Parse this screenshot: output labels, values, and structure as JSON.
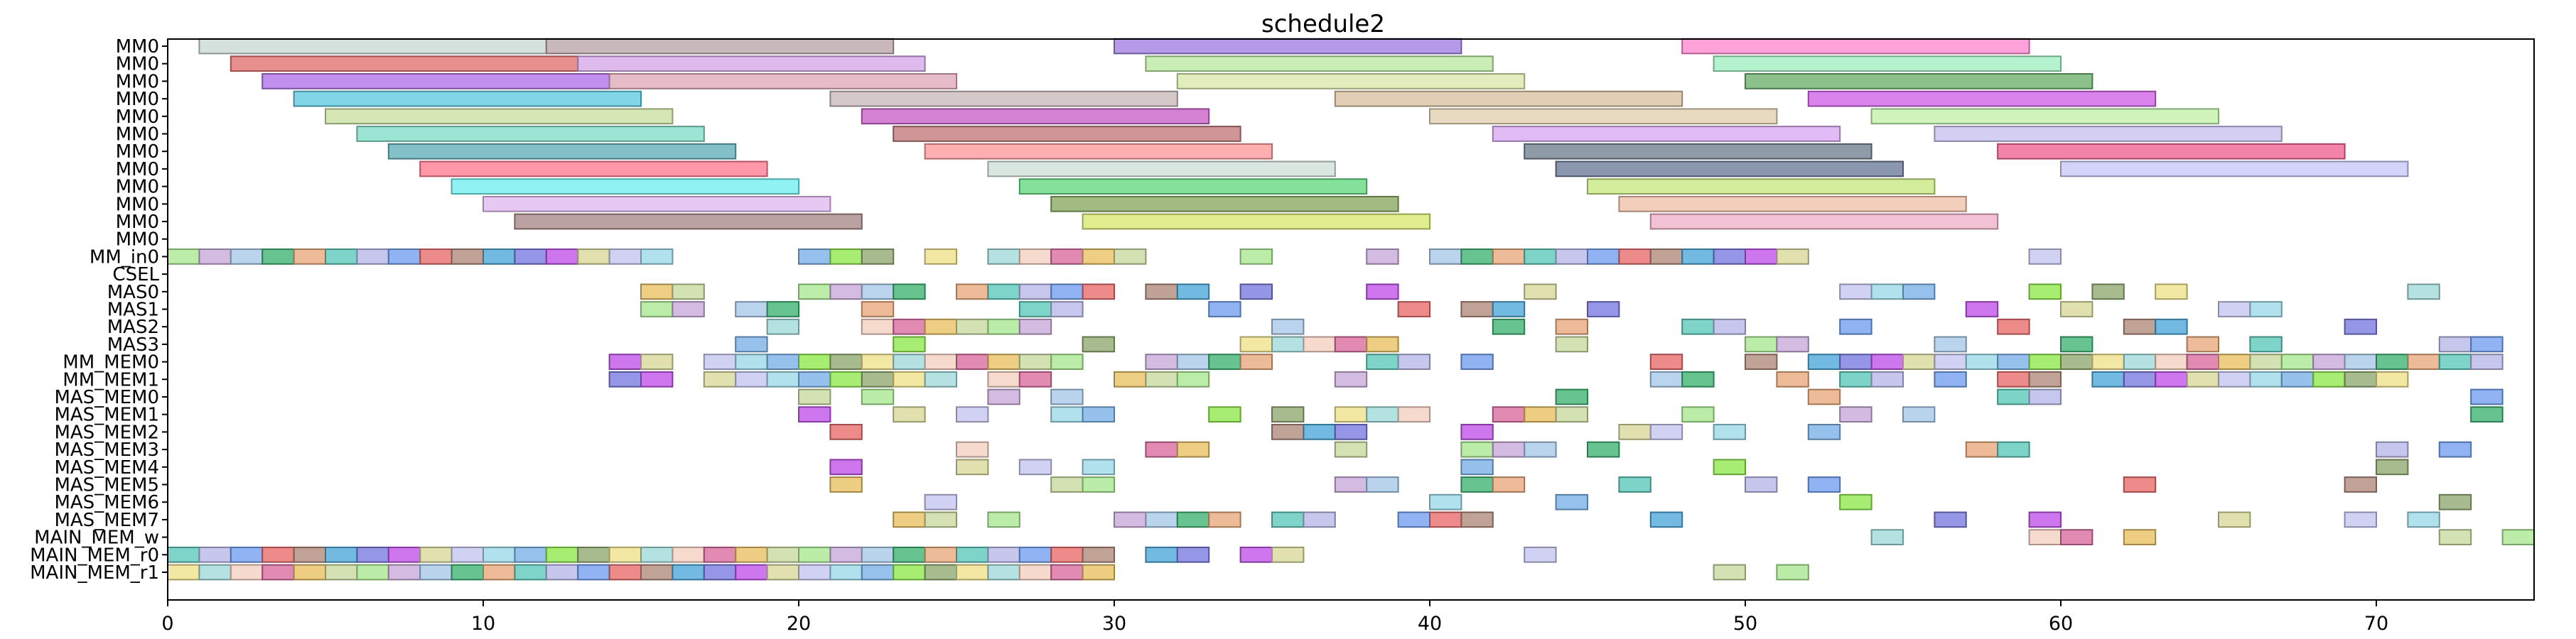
{
  "chart_data": {
    "type": "gantt",
    "title": "schedule2",
    "xlim": [
      0,
      75
    ],
    "xticks": [
      0,
      10,
      20,
      30,
      40,
      50,
      60,
      70
    ],
    "rows": [
      "MM0",
      "MM0",
      "MM0",
      "MM0",
      "MM0",
      "MM0",
      "MM0",
      "MM0",
      "MM0",
      "MM0",
      "MM0",
      "MM0",
      "MM_in0",
      "CSEL",
      "MAS0",
      "MAS1",
      "MAS2",
      "MAS3",
      "MM_MEM0",
      "MM_MEM1",
      "MAS_MEM0",
      "MAS_MEM1",
      "MAS_MEM2",
      "MAS_MEM3",
      "MAS_MEM4",
      "MAS_MEM5",
      "MAS_MEM6",
      "MAS_MEM7",
      "MAIN_MEM_w",
      "MAIN_MEM_r0",
      "MAIN_MEM_r1"
    ],
    "palette": [
      "#a6c8e8",
      "#9fd8d8",
      "#d8d89a",
      "#b7b7e8",
      "#c7d89e",
      "#8de84a",
      "#4aa6d8",
      "#3cb371",
      "#f5d0c0",
      "#c4c4f0",
      "#6f9ef0",
      "#a8e890",
      "#8fa86f",
      "#7878e0",
      "#e8a87a",
      "#d86a9e",
      "#9ad8e8",
      "#e86a6a",
      "#c8a8d8",
      "#f0e08a",
      "#c050e8",
      "#5ac8b8",
      "#e8c060",
      "#7ab0e8",
      "#b08878"
    ],
    "series": [
      {
        "row": 0,
        "start": 1,
        "end": 12,
        "color": "#c9d8d2"
      },
      {
        "row": 0,
        "start": 12,
        "end": 23,
        "color": "#b8a3a8"
      },
      {
        "row": 0,
        "start": 30,
        "end": 41,
        "color": "#a07ee0"
      },
      {
        "row": 0,
        "start": 48,
        "end": 59,
        "color": "#ff88d0"
      },
      {
        "row": 1,
        "start": 2,
        "end": 13,
        "color": "#e07070"
      },
      {
        "row": 1,
        "start": 13,
        "end": 24,
        "color": "#d4a8e8"
      },
      {
        "row": 1,
        "start": 31,
        "end": 42,
        "color": "#b8e8a0"
      },
      {
        "row": 1,
        "start": 49,
        "end": 60,
        "color": "#a0f0c0"
      },
      {
        "row": 2,
        "start": 3,
        "end": 14,
        "color": "#b070e8"
      },
      {
        "row": 2,
        "start": 14,
        "end": 25,
        "color": "#e0a8b8"
      },
      {
        "row": 2,
        "start": 32,
        "end": 43,
        "color": "#d8e8a8"
      },
      {
        "row": 2,
        "start": 50,
        "end": 61,
        "color": "#6aaf6a"
      },
      {
        "row": 3,
        "start": 4,
        "end": 15,
        "color": "#5ccbe0"
      },
      {
        "row": 3,
        "start": 21,
        "end": 32,
        "color": "#c8b8b8"
      },
      {
        "row": 3,
        "start": 37,
        "end": 48,
        "color": "#d8c0a0"
      },
      {
        "row": 3,
        "start": 52,
        "end": 63,
        "color": "#d060e8"
      },
      {
        "row": 4,
        "start": 5,
        "end": 16,
        "color": "#c8e0a0"
      },
      {
        "row": 4,
        "start": 22,
        "end": 33,
        "color": "#c860c8"
      },
      {
        "row": 4,
        "start": 40,
        "end": 51,
        "color": "#e0d0b0"
      },
      {
        "row": 4,
        "start": 54,
        "end": 65,
        "color": "#c0f0a8"
      },
      {
        "row": 5,
        "start": 6,
        "end": 17,
        "color": "#80dcc8"
      },
      {
        "row": 5,
        "start": 23,
        "end": 34,
        "color": "#c07878"
      },
      {
        "row": 5,
        "start": 42,
        "end": 53,
        "color": "#d8a8f0"
      },
      {
        "row": 5,
        "start": 56,
        "end": 67,
        "color": "#c8c0f0"
      },
      {
        "row": 6,
        "start": 7,
        "end": 18,
        "color": "#60b0b8"
      },
      {
        "row": 6,
        "start": 24,
        "end": 35,
        "color": "#ff9898"
      },
      {
        "row": 6,
        "start": 43,
        "end": 54,
        "color": "#708090"
      },
      {
        "row": 6,
        "start": 58,
        "end": 69,
        "color": "#f06090"
      },
      {
        "row": 7,
        "start": 8,
        "end": 19,
        "color": "#ff7a90"
      },
      {
        "row": 7,
        "start": 26,
        "end": 37,
        "color": "#d0e0d8"
      },
      {
        "row": 7,
        "start": 44,
        "end": 55,
        "color": "#6a7a98"
      },
      {
        "row": 7,
        "start": 60,
        "end": 71,
        "color": "#c8c8f8"
      },
      {
        "row": 8,
        "start": 9,
        "end": 20,
        "color": "#70f0f0"
      },
      {
        "row": 8,
        "start": 27,
        "end": 38,
        "color": "#60d880"
      },
      {
        "row": 8,
        "start": 45,
        "end": 56,
        "color": "#c8e880"
      },
      {
        "row": 9,
        "start": 10,
        "end": 21,
        "color": "#e0b8f0"
      },
      {
        "row": 9,
        "start": 28,
        "end": 39,
        "color": "#88a860"
      },
      {
        "row": 9,
        "start": 46,
        "end": 57,
        "color": "#f0c0a8"
      },
      {
        "row": 10,
        "start": 11,
        "end": 22,
        "color": "#a88888"
      },
      {
        "row": 10,
        "start": 29,
        "end": 40,
        "color": "#d8e870"
      },
      {
        "row": 10,
        "start": 47,
        "end": 58,
        "color": "#f0b0c8"
      }
    ],
    "short_rows": [
      {
        "row": 12,
        "ranges": [
          [
            0,
            16
          ],
          [
            20,
            23
          ],
          [
            24,
            25
          ],
          [
            26,
            31
          ],
          [
            34,
            35
          ],
          [
            38,
            39
          ],
          [
            40,
            52
          ],
          [
            59,
            60
          ]
        ]
      },
      {
        "row": 14,
        "ranges": [
          [
            15,
            17
          ],
          [
            20,
            24
          ],
          [
            25,
            30
          ],
          [
            31,
            33
          ],
          [
            34,
            35
          ],
          [
            38,
            39
          ],
          [
            43,
            44
          ],
          [
            53,
            56
          ],
          [
            59,
            60
          ],
          [
            61,
            62
          ],
          [
            63,
            64
          ],
          [
            71,
            72
          ]
        ]
      },
      {
        "row": 15,
        "ranges": [
          [
            15,
            16
          ],
          [
            16,
            17
          ],
          [
            18,
            20
          ],
          [
            22,
            23
          ],
          [
            27,
            29
          ],
          [
            33,
            34
          ],
          [
            39,
            40
          ],
          [
            41,
            43
          ],
          [
            45,
            46
          ],
          [
            57,
            58
          ],
          [
            60,
            61
          ],
          [
            65,
            67
          ]
        ]
      },
      {
        "row": 16,
        "ranges": [
          [
            19,
            20
          ],
          [
            22,
            24
          ],
          [
            24,
            28
          ],
          [
            35,
            36
          ],
          [
            42,
            43
          ],
          [
            44,
            45
          ],
          [
            48,
            50
          ],
          [
            53,
            54
          ],
          [
            58,
            59
          ],
          [
            62,
            64
          ],
          [
            69,
            70
          ]
        ]
      },
      {
        "row": 17,
        "ranges": [
          [
            18,
            19
          ],
          [
            23,
            24
          ],
          [
            29,
            30
          ],
          [
            34,
            39
          ],
          [
            44,
            45
          ],
          [
            50,
            52
          ],
          [
            56,
            57
          ],
          [
            60,
            61
          ],
          [
            64,
            65
          ],
          [
            66,
            67
          ],
          [
            72,
            74
          ]
        ]
      },
      {
        "row": 18,
        "ranges": [
          [
            14,
            16
          ],
          [
            17,
            29
          ],
          [
            31,
            35
          ],
          [
            38,
            40
          ],
          [
            41,
            42
          ],
          [
            47,
            48
          ],
          [
            50,
            51
          ],
          [
            52,
            74
          ]
        ]
      },
      {
        "row": 19,
        "ranges": [
          [
            14,
            16
          ],
          [
            17,
            25
          ],
          [
            26,
            28
          ],
          [
            30,
            33
          ],
          [
            37,
            38
          ],
          [
            47,
            49
          ],
          [
            51,
            52
          ],
          [
            53,
            55
          ],
          [
            56,
            57
          ],
          [
            58,
            60
          ],
          [
            61,
            71
          ]
        ]
      },
      {
        "row": 20,
        "ranges": [
          [
            20,
            21
          ],
          [
            22,
            23
          ],
          [
            26,
            27
          ],
          [
            28,
            29
          ],
          [
            44,
            45
          ],
          [
            52,
            53
          ],
          [
            58,
            60
          ],
          [
            73,
            74
          ]
        ]
      },
      {
        "row": 21,
        "ranges": [
          [
            20,
            21
          ],
          [
            23,
            24
          ],
          [
            25,
            26
          ],
          [
            28,
            29
          ],
          [
            29,
            30
          ],
          [
            33,
            34
          ],
          [
            35,
            36
          ],
          [
            37,
            40
          ],
          [
            42,
            45
          ],
          [
            48,
            49
          ],
          [
            53,
            54
          ],
          [
            55,
            56
          ],
          [
            73,
            74
          ]
        ]
      },
      {
        "row": 22,
        "ranges": [
          [
            21,
            22
          ],
          [
            35,
            38
          ],
          [
            41,
            42
          ],
          [
            46,
            48
          ],
          [
            49,
            50
          ],
          [
            52,
            53
          ]
        ]
      },
      {
        "row": 23,
        "ranges": [
          [
            25,
            26
          ],
          [
            31,
            33
          ],
          [
            37,
            38
          ],
          [
            41,
            44
          ],
          [
            45,
            46
          ],
          [
            57,
            59
          ],
          [
            70,
            71
          ],
          [
            72,
            73
          ]
        ]
      },
      {
        "row": 24,
        "ranges": [
          [
            21,
            22
          ],
          [
            25,
            26
          ],
          [
            27,
            28
          ],
          [
            29,
            30
          ],
          [
            41,
            42
          ],
          [
            49,
            50
          ],
          [
            70,
            71
          ]
        ]
      },
      {
        "row": 25,
        "ranges": [
          [
            21,
            22
          ],
          [
            28,
            30
          ],
          [
            37,
            38
          ],
          [
            38,
            39
          ],
          [
            41,
            43
          ],
          [
            46,
            47
          ],
          [
            50,
            51
          ],
          [
            52,
            53
          ],
          [
            62,
            63
          ],
          [
            69,
            70
          ]
        ]
      },
      {
        "row": 26,
        "ranges": [
          [
            24,
            25
          ],
          [
            40,
            41
          ],
          [
            44,
            45
          ],
          [
            53,
            54
          ],
          [
            72,
            73
          ]
        ]
      },
      {
        "row": 27,
        "ranges": [
          [
            23,
            25
          ],
          [
            26,
            27
          ],
          [
            30,
            34
          ],
          [
            35,
            37
          ],
          [
            39,
            42
          ],
          [
            47,
            48
          ],
          [
            56,
            57
          ],
          [
            59,
            60
          ],
          [
            65,
            66
          ],
          [
            69,
            70
          ],
          [
            71,
            72
          ]
        ]
      },
      {
        "row": 28,
        "ranges": [
          [
            54,
            55
          ],
          [
            59,
            61
          ],
          [
            62,
            63
          ],
          [
            72,
            73
          ],
          [
            74,
            75
          ]
        ]
      },
      {
        "row": 29,
        "ranges": [
          [
            0,
            30
          ],
          [
            31,
            33
          ],
          [
            34,
            36
          ],
          [
            43,
            44
          ]
        ]
      },
      {
        "row": 30,
        "ranges": [
          [
            0,
            30
          ],
          [
            49,
            50
          ],
          [
            51,
            52
          ]
        ]
      }
    ]
  }
}
